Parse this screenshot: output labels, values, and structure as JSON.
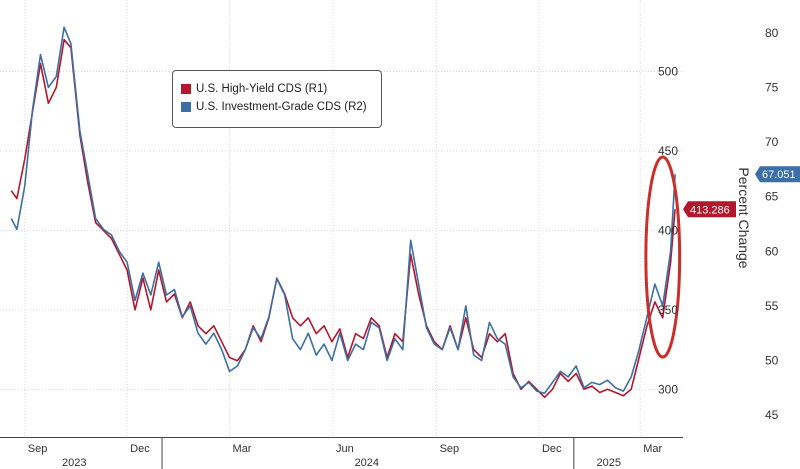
{
  "chart_data": {
    "type": "line",
    "title": "",
    "xlabel": "",
    "ylabel_left": "",
    "ylabel_right": "Percent Change",
    "x_ticks": [
      "Sep",
      "Dec",
      "Mar",
      "Jun",
      "Sep",
      "Dec",
      "Mar"
    ],
    "x_tick_dates": [
      "2023-09-01",
      "2023-12-01",
      "2024-03-01",
      "2024-06-01",
      "2024-09-01",
      "2024-12-01",
      "2025-03-01"
    ],
    "year_labels": [
      "2023",
      "2024",
      "2025"
    ],
    "year_label_dates": [
      "2023-10-15",
      "2024-07-01",
      "2025-02-01"
    ],
    "left_axis": {
      "ticks": [
        300,
        350,
        400,
        450,
        500
      ],
      "range": [
        270,
        545
      ]
    },
    "right_axis": {
      "ticks": [
        45,
        50,
        55,
        60,
        65,
        70,
        75,
        80
      ],
      "range": [
        43,
        83
      ]
    },
    "grid": true,
    "legend_position": "top-left",
    "series": [
      {
        "name": "U.S. High-Yield CDS (R1)",
        "color": "#b3172b",
        "axis": "left",
        "last_value_label": "413.286",
        "points": [
          [
            "2023-08-20",
            425
          ],
          [
            "2023-08-25",
            420
          ],
          [
            "2023-09-01",
            445
          ],
          [
            "2023-09-08",
            475
          ],
          [
            "2023-09-15",
            505
          ],
          [
            "2023-09-22",
            480
          ],
          [
            "2023-09-29",
            490
          ],
          [
            "2023-10-06",
            520
          ],
          [
            "2023-10-12",
            515
          ],
          [
            "2023-10-20",
            460
          ],
          [
            "2023-10-27",
            430
          ],
          [
            "2023-11-03",
            405
          ],
          [
            "2023-11-10",
            400
          ],
          [
            "2023-11-17",
            395
          ],
          [
            "2023-11-24",
            385
          ],
          [
            "2023-12-01",
            375
          ],
          [
            "2023-12-08",
            350
          ],
          [
            "2023-12-15",
            370
          ],
          [
            "2023-12-22",
            350
          ],
          [
            "2023-12-29",
            375
          ],
          [
            "2024-01-05",
            355
          ],
          [
            "2024-01-12",
            360
          ],
          [
            "2024-01-19",
            345
          ],
          [
            "2024-01-26",
            355
          ],
          [
            "2024-02-02",
            340
          ],
          [
            "2024-02-09",
            335
          ],
          [
            "2024-02-16",
            340
          ],
          [
            "2024-02-23",
            330
          ],
          [
            "2024-03-01",
            320
          ],
          [
            "2024-03-08",
            318
          ],
          [
            "2024-03-15",
            325
          ],
          [
            "2024-03-22",
            340
          ],
          [
            "2024-03-29",
            330
          ],
          [
            "2024-04-05",
            345
          ],
          [
            "2024-04-12",
            370
          ],
          [
            "2024-04-19",
            360
          ],
          [
            "2024-04-26",
            345
          ],
          [
            "2024-05-03",
            340
          ],
          [
            "2024-05-10",
            345
          ],
          [
            "2024-05-17",
            335
          ],
          [
            "2024-05-24",
            340
          ],
          [
            "2024-05-31",
            330
          ],
          [
            "2024-06-07",
            338
          ],
          [
            "2024-06-14",
            320
          ],
          [
            "2024-06-21",
            335
          ],
          [
            "2024-06-28",
            332
          ],
          [
            "2024-07-05",
            345
          ],
          [
            "2024-07-12",
            340
          ],
          [
            "2024-07-19",
            320
          ],
          [
            "2024-07-26",
            335
          ],
          [
            "2024-08-02",
            330
          ],
          [
            "2024-08-09",
            385
          ],
          [
            "2024-08-16",
            360
          ],
          [
            "2024-08-23",
            340
          ],
          [
            "2024-08-30",
            330
          ],
          [
            "2024-09-06",
            325
          ],
          [
            "2024-09-13",
            340
          ],
          [
            "2024-09-20",
            325
          ],
          [
            "2024-09-27",
            345
          ],
          [
            "2024-10-04",
            325
          ],
          [
            "2024-10-11",
            320
          ],
          [
            "2024-10-18",
            335
          ],
          [
            "2024-10-25",
            330
          ],
          [
            "2024-11-01",
            335
          ],
          [
            "2024-11-08",
            310
          ],
          [
            "2024-11-15",
            300
          ],
          [
            "2024-11-22",
            305
          ],
          [
            "2024-11-29",
            300
          ],
          [
            "2024-12-06",
            295
          ],
          [
            "2024-12-13",
            300
          ],
          [
            "2024-12-20",
            310
          ],
          [
            "2024-12-27",
            305
          ],
          [
            "2025-01-03",
            310
          ],
          [
            "2025-01-10",
            300
          ],
          [
            "2025-01-17",
            302
          ],
          [
            "2025-01-24",
            298
          ],
          [
            "2025-01-31",
            300
          ],
          [
            "2025-02-07",
            298
          ],
          [
            "2025-02-14",
            296
          ],
          [
            "2025-02-21",
            300
          ],
          [
            "2025-02-28",
            320
          ],
          [
            "2025-03-07",
            340
          ],
          [
            "2025-03-14",
            355
          ],
          [
            "2025-03-21",
            345
          ],
          [
            "2025-03-28",
            380
          ],
          [
            "2025-04-01",
            413.3
          ]
        ]
      },
      {
        "name": "U.S. Investment-Grade CDS (R2)",
        "color": "#3b6fa6",
        "axis": "right",
        "last_value_label": "67.051",
        "points": [
          [
            "2023-08-20",
            63
          ],
          [
            "2023-08-25",
            62
          ],
          [
            "2023-09-01",
            66
          ],
          [
            "2023-09-08",
            73
          ],
          [
            "2023-09-15",
            78
          ],
          [
            "2023-09-22",
            75
          ],
          [
            "2023-09-29",
            76
          ],
          [
            "2023-10-06",
            80.5
          ],
          [
            "2023-10-12",
            79
          ],
          [
            "2023-10-20",
            71
          ],
          [
            "2023-10-27",
            67
          ],
          [
            "2023-11-03",
            63
          ],
          [
            "2023-11-10",
            62
          ],
          [
            "2023-11-17",
            61.5
          ],
          [
            "2023-11-24",
            60
          ],
          [
            "2023-12-01",
            59
          ],
          [
            "2023-12-08",
            55.5
          ],
          [
            "2023-12-15",
            58
          ],
          [
            "2023-12-22",
            56
          ],
          [
            "2023-12-29",
            59
          ],
          [
            "2024-01-05",
            56
          ],
          [
            "2024-01-12",
            56.5
          ],
          [
            "2024-01-19",
            54
          ],
          [
            "2024-01-26",
            55
          ],
          [
            "2024-02-02",
            52.5
          ],
          [
            "2024-02-09",
            51.5
          ],
          [
            "2024-02-16",
            52.5
          ],
          [
            "2024-02-23",
            51
          ],
          [
            "2024-03-01",
            49
          ],
          [
            "2024-03-08",
            49.5
          ],
          [
            "2024-03-15",
            51
          ],
          [
            "2024-03-22",
            53
          ],
          [
            "2024-03-29",
            52
          ],
          [
            "2024-04-05",
            54
          ],
          [
            "2024-04-12",
            57.5
          ],
          [
            "2024-04-19",
            56
          ],
          [
            "2024-04-26",
            52
          ],
          [
            "2024-05-03",
            51
          ],
          [
            "2024-05-10",
            52.5
          ],
          [
            "2024-05-17",
            50.5
          ],
          [
            "2024-05-24",
            51.5
          ],
          [
            "2024-05-31",
            50
          ],
          [
            "2024-06-07",
            52.5
          ],
          [
            "2024-06-14",
            50
          ],
          [
            "2024-06-21",
            51.5
          ],
          [
            "2024-06-28",
            51
          ],
          [
            "2024-07-05",
            53.5
          ],
          [
            "2024-07-12",
            53
          ],
          [
            "2024-07-19",
            50
          ],
          [
            "2024-07-26",
            52
          ],
          [
            "2024-08-02",
            51
          ],
          [
            "2024-08-09",
            61
          ],
          [
            "2024-08-16",
            57
          ],
          [
            "2024-08-23",
            53
          ],
          [
            "2024-08-30",
            51.5
          ],
          [
            "2024-09-06",
            51
          ],
          [
            "2024-09-13",
            53
          ],
          [
            "2024-09-20",
            51
          ],
          [
            "2024-09-27",
            55
          ],
          [
            "2024-10-04",
            50.5
          ],
          [
            "2024-10-11",
            50
          ],
          [
            "2024-10-18",
            53.5
          ],
          [
            "2024-10-25",
            52
          ],
          [
            "2024-11-01",
            51.5
          ],
          [
            "2024-11-08",
            48.5
          ],
          [
            "2024-11-15",
            47.5
          ],
          [
            "2024-11-22",
            48
          ],
          [
            "2024-11-29",
            47.2
          ],
          [
            "2024-12-06",
            47
          ],
          [
            "2024-12-13",
            48
          ],
          [
            "2024-12-20",
            49
          ],
          [
            "2024-12-27",
            48.5
          ],
          [
            "2025-01-03",
            49.5
          ],
          [
            "2025-01-10",
            47.5
          ],
          [
            "2025-01-17",
            48
          ],
          [
            "2025-01-24",
            47.8
          ],
          [
            "2025-01-31",
            48.2
          ],
          [
            "2025-02-07",
            47.5
          ],
          [
            "2025-02-14",
            47.2
          ],
          [
            "2025-02-21",
            48.5
          ],
          [
            "2025-02-28",
            51
          ],
          [
            "2025-03-07",
            54
          ],
          [
            "2025-03-14",
            57
          ],
          [
            "2025-03-21",
            55
          ],
          [
            "2025-03-28",
            60
          ],
          [
            "2025-04-01",
            67.051
          ]
        ]
      }
    ]
  },
  "highlight": {
    "color": "#c9302c",
    "start_date": "2025-03-06",
    "end_date": "2025-04-05"
  },
  "colors": {
    "grid": "#d9d9d9",
    "axis": "#444444",
    "tick_text": "#333333",
    "background": "#ffffff"
  }
}
